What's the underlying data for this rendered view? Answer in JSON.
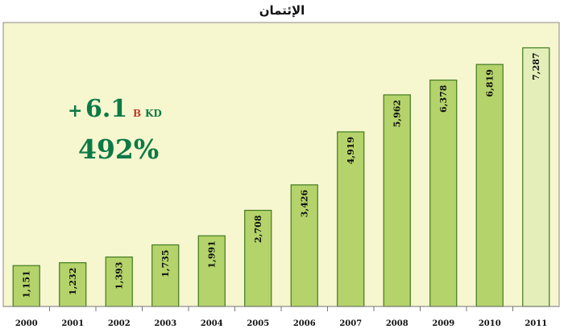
{
  "colors": {
    "plot_bg": "#f6f6cf",
    "bar_fill": "#b5d36b",
    "bar_stroke": "#3e7a1f",
    "bar_last_fill": "#e4eeb8",
    "annotation_green": "#0b7a45",
    "annotation_red": "#c0392b"
  },
  "chart_data": {
    "type": "bar",
    "title": "الإئتمان",
    "xlabel": "",
    "ylabel": "",
    "categories": [
      "2000",
      "2001",
      "2002",
      "2003",
      "2004",
      "2005",
      "2006",
      "2007",
      "2008",
      "2009",
      "2010",
      "2011"
    ],
    "values": [
      1151,
      1232,
      1393,
      1735,
      1991,
      2708,
      3426,
      4919,
      5962,
      6378,
      6819,
      7287
    ],
    "value_labels": [
      "1,151",
      "1,232",
      "1,393",
      "1,735",
      "1,991",
      "2,708",
      "3,426",
      "4,919",
      "5,962",
      "6,378",
      "6,819",
      "7,287"
    ],
    "ylim": [
      0,
      8000
    ],
    "grid": false,
    "annotations": {
      "change_sign": "+",
      "change_value": "6.1",
      "change_unit_b": "B",
      "change_unit_kd": "KD",
      "percent": "492%"
    }
  }
}
